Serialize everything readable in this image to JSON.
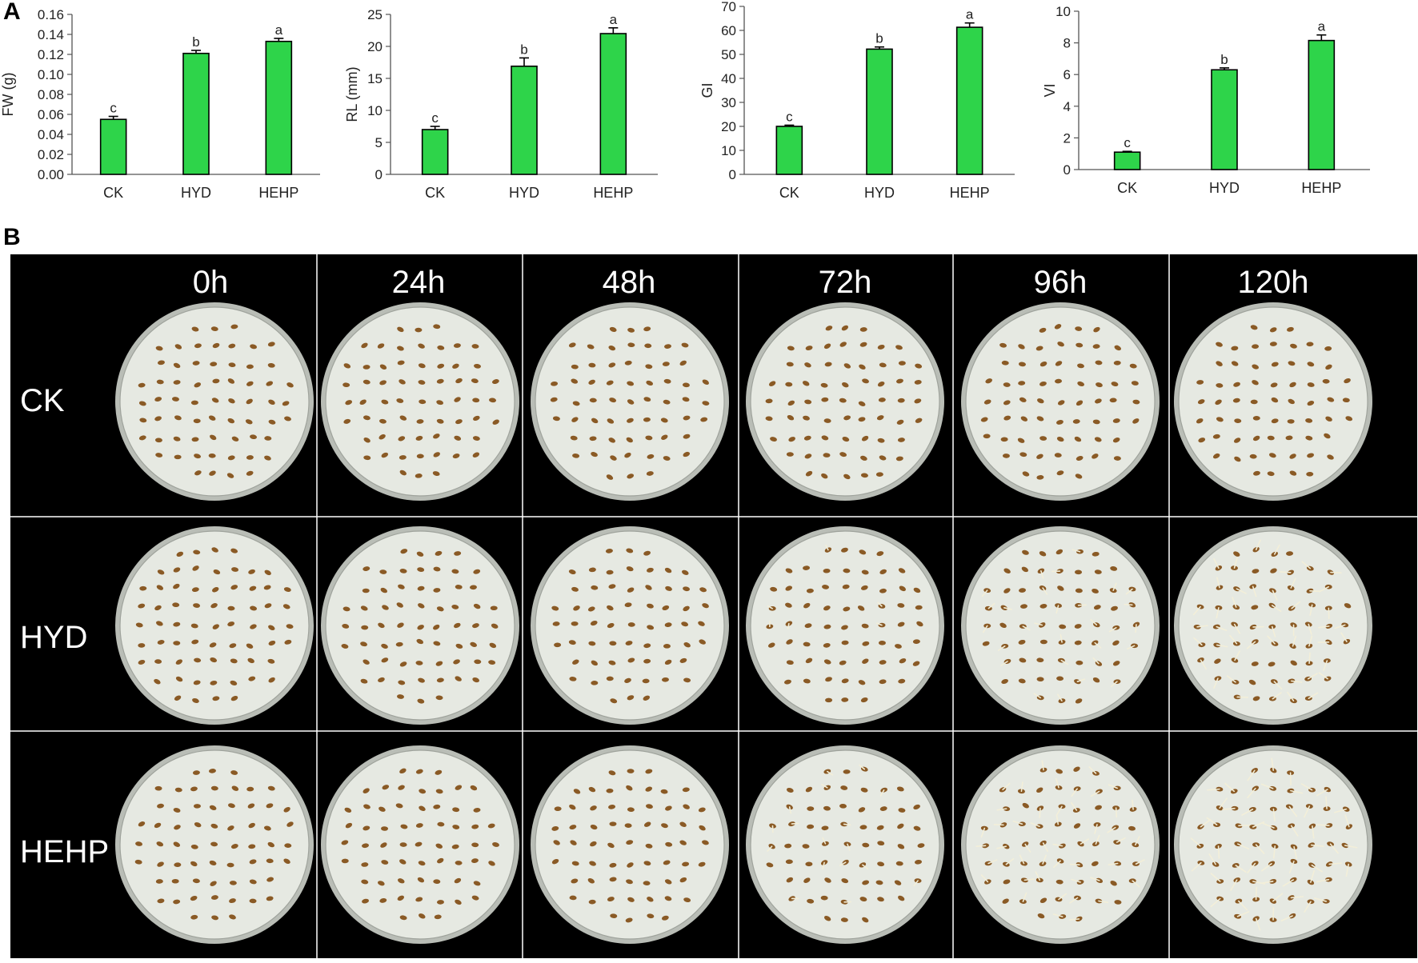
{
  "panel_letters": {
    "a": "A",
    "b": "B"
  },
  "chart_data": [
    {
      "type": "bar",
      "categories": [
        "CK",
        "HYD",
        "HEHP"
      ],
      "values": [
        0.055,
        0.121,
        0.133
      ],
      "errors": [
        0.003,
        0.003,
        0.003
      ],
      "significance": [
        "c",
        "b",
        "a"
      ],
      "ylabel": "FW (g)",
      "ylim": [
        0,
        0.16
      ],
      "yticks": [
        "0.00",
        "0.02",
        "0.04",
        "0.06",
        "0.08",
        "0.10",
        "0.12",
        "0.14",
        "0.16"
      ],
      "bar_color": "#2ed44a",
      "grid": false
    },
    {
      "type": "bar",
      "categories": [
        "CK",
        "HYD",
        "HEHP"
      ],
      "values": [
        7.0,
        16.9,
        22.0
      ],
      "errors": [
        0.5,
        1.3,
        0.9
      ],
      "significance": [
        "c",
        "b",
        "a"
      ],
      "ylabel": "RL (mm)",
      "ylim": [
        0,
        25
      ],
      "yticks": [
        "0",
        "5",
        "10",
        "15",
        "20",
        "25"
      ],
      "bar_color": "#2ed44a",
      "grid": false
    },
    {
      "type": "bar",
      "categories": [
        "CK",
        "HYD",
        "HEHP"
      ],
      "values": [
        20.0,
        52.2,
        61.3
      ],
      "errors": [
        0.5,
        0.9,
        1.8
      ],
      "significance": [
        "c",
        "b",
        "a"
      ],
      "ylabel": "GI",
      "ylim": [
        0,
        70
      ],
      "yticks": [
        "0",
        "10",
        "20",
        "30",
        "40",
        "50",
        "60",
        "70"
      ],
      "bar_color": "#2ed44a",
      "grid": false
    },
    {
      "type": "bar",
      "categories": [
        "CK",
        "HYD",
        "HEHP"
      ],
      "values": [
        1.1,
        6.3,
        8.15
      ],
      "errors": [
        0.05,
        0.12,
        0.35
      ],
      "significance": [
        "c",
        "b",
        "a"
      ],
      "ylabel": "VI",
      "ylim": [
        0,
        10
      ],
      "yticks": [
        "0",
        "2",
        "4",
        "6",
        "8",
        "10"
      ],
      "bar_color": "#2ed44a",
      "grid": false
    }
  ],
  "photo_panel": {
    "time_labels": [
      "0h",
      "24h",
      "48h",
      "72h",
      "96h",
      "120h"
    ],
    "row_labels": [
      "CK",
      "HYD",
      "HEHP"
    ],
    "germination_level": [
      [
        0,
        0,
        0,
        0,
        0,
        0
      ],
      [
        0,
        0,
        0,
        0.15,
        0.45,
        0.8
      ],
      [
        0,
        0,
        0,
        0.3,
        0.65,
        1.0
      ]
    ],
    "colors": {
      "background": "#000000",
      "dish": "#e6e9e2",
      "dish_rim": "#b9bdb6",
      "seed": "#8a5a25",
      "sprout": "#f3efd9"
    }
  }
}
